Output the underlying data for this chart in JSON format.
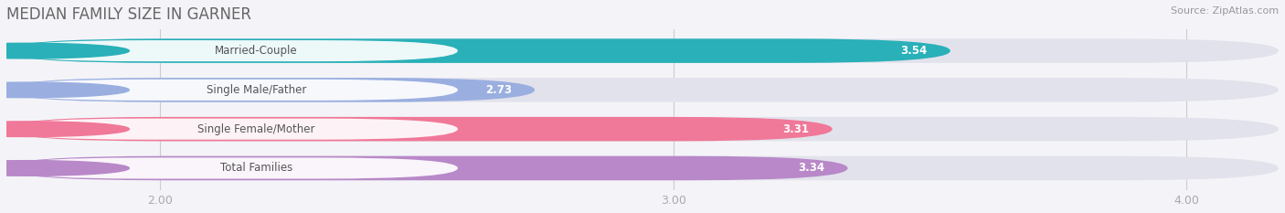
{
  "title": "MEDIAN FAMILY SIZE IN GARNER",
  "source": "Source: ZipAtlas.com",
  "categories": [
    "Married-Couple",
    "Single Male/Father",
    "Single Female/Mother",
    "Total Families"
  ],
  "values": [
    3.54,
    2.73,
    3.31,
    3.34
  ],
  "bar_colors": [
    "#29b0b8",
    "#9aaee0",
    "#f07898",
    "#b888c8"
  ],
  "xlim_min": 1.7,
  "xlim_max": 4.18,
  "xticks": [
    2.0,
    3.0,
    4.0
  ],
  "xtick_labels": [
    "2.00",
    "3.00",
    "4.00"
  ],
  "bar_height": 0.62,
  "bg_color": "#f4f4f8",
  "bar_bg_color": "#e2e2ec",
  "title_fontsize": 12,
  "label_fontsize": 8.5,
  "value_fontsize": 8.5,
  "tick_fontsize": 9,
  "source_fontsize": 8
}
